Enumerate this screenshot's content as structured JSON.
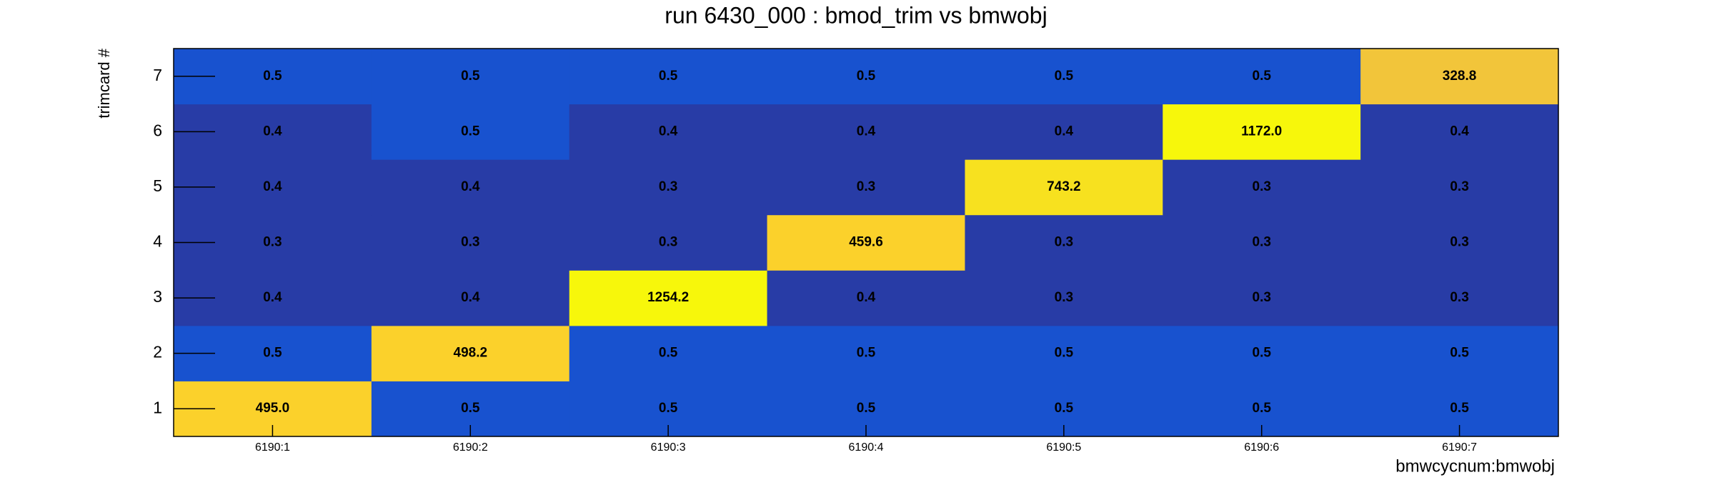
{
  "chart_data": {
    "type": "heatmap",
    "title": "run 6430_000 : bmod_trim vs bmwobj",
    "x_label": "bmwcycnum:bmwobj",
    "y_label": "trimcard #",
    "x_categories": [
      "6190:1",
      "6190:2",
      "6190:3",
      "6190:4",
      "6190:5",
      "6190:6",
      "6190:7"
    ],
    "y_categories": [
      "1",
      "2",
      "3",
      "4",
      "5",
      "6",
      "7"
    ],
    "values": [
      [
        495.0,
        0.5,
        0.5,
        0.5,
        0.5,
        0.5,
        0.5
      ],
      [
        0.5,
        498.2,
        0.5,
        0.5,
        0.5,
        0.5,
        0.5
      ],
      [
        0.4,
        0.4,
        1254.2,
        0.4,
        0.3,
        0.3,
        0.3
      ],
      [
        0.3,
        0.3,
        0.3,
        459.6,
        0.3,
        0.3,
        0.3
      ],
      [
        0.4,
        0.4,
        0.3,
        0.3,
        743.2,
        0.3,
        0.3
      ],
      [
        0.4,
        0.5,
        0.4,
        0.4,
        0.4,
        1172.0,
        0.4
      ],
      [
        0.5,
        0.5,
        0.5,
        0.5,
        0.5,
        0.5,
        328.8
      ]
    ],
    "value_labels": [
      [
        "495.0",
        "0.5",
        "0.5",
        "0.5",
        "0.5",
        "0.5",
        "0.5"
      ],
      [
        "0.5",
        "498.2",
        "0.5",
        "0.5",
        "0.5",
        "0.5",
        "0.5"
      ],
      [
        "0.4",
        "0.4",
        "1254.2",
        "0.4",
        "0.3",
        "0.3",
        "0.3"
      ],
      [
        "0.3",
        "0.3",
        "0.3",
        "459.6",
        "0.3",
        "0.3",
        "0.3"
      ],
      [
        "0.4",
        "0.4",
        "0.3",
        "0.3",
        "743.2",
        "0.3",
        "0.3"
      ],
      [
        "0.4",
        "0.5",
        "0.4",
        "0.4",
        "0.4",
        "1172.0",
        "0.4"
      ],
      [
        "0.5",
        "0.5",
        "0.5",
        "0.5",
        "0.5",
        "0.5",
        "328.8"
      ]
    ],
    "colors": [
      [
        "#fbd12b",
        "#1852cf",
        "#1852cf",
        "#1852cf",
        "#1852cf",
        "#1852cf",
        "#1852cf"
      ],
      [
        "#1852cf",
        "#fbd12b",
        "#1852cf",
        "#1852cf",
        "#1852cf",
        "#1852cf",
        "#1852cf"
      ],
      [
        "#283ca6",
        "#283ca6",
        "#f7f70b",
        "#283ca6",
        "#283ca6",
        "#283ca6",
        "#283ca6"
      ],
      [
        "#283ca6",
        "#283ca6",
        "#283ca6",
        "#fbd12b",
        "#283ca6",
        "#283ca6",
        "#283ca6"
      ],
      [
        "#283ca6",
        "#283ca6",
        "#283ca6",
        "#283ca6",
        "#f7e11f",
        "#283ca6",
        "#283ca6"
      ],
      [
        "#283ca6",
        "#1852cf",
        "#283ca6",
        "#283ca6",
        "#283ca6",
        "#f7f70b",
        "#283ca6"
      ],
      [
        "#1852cf",
        "#1852cf",
        "#1852cf",
        "#1852cf",
        "#1852cf",
        "#1852cf",
        "#f2c53a"
      ]
    ]
  }
}
